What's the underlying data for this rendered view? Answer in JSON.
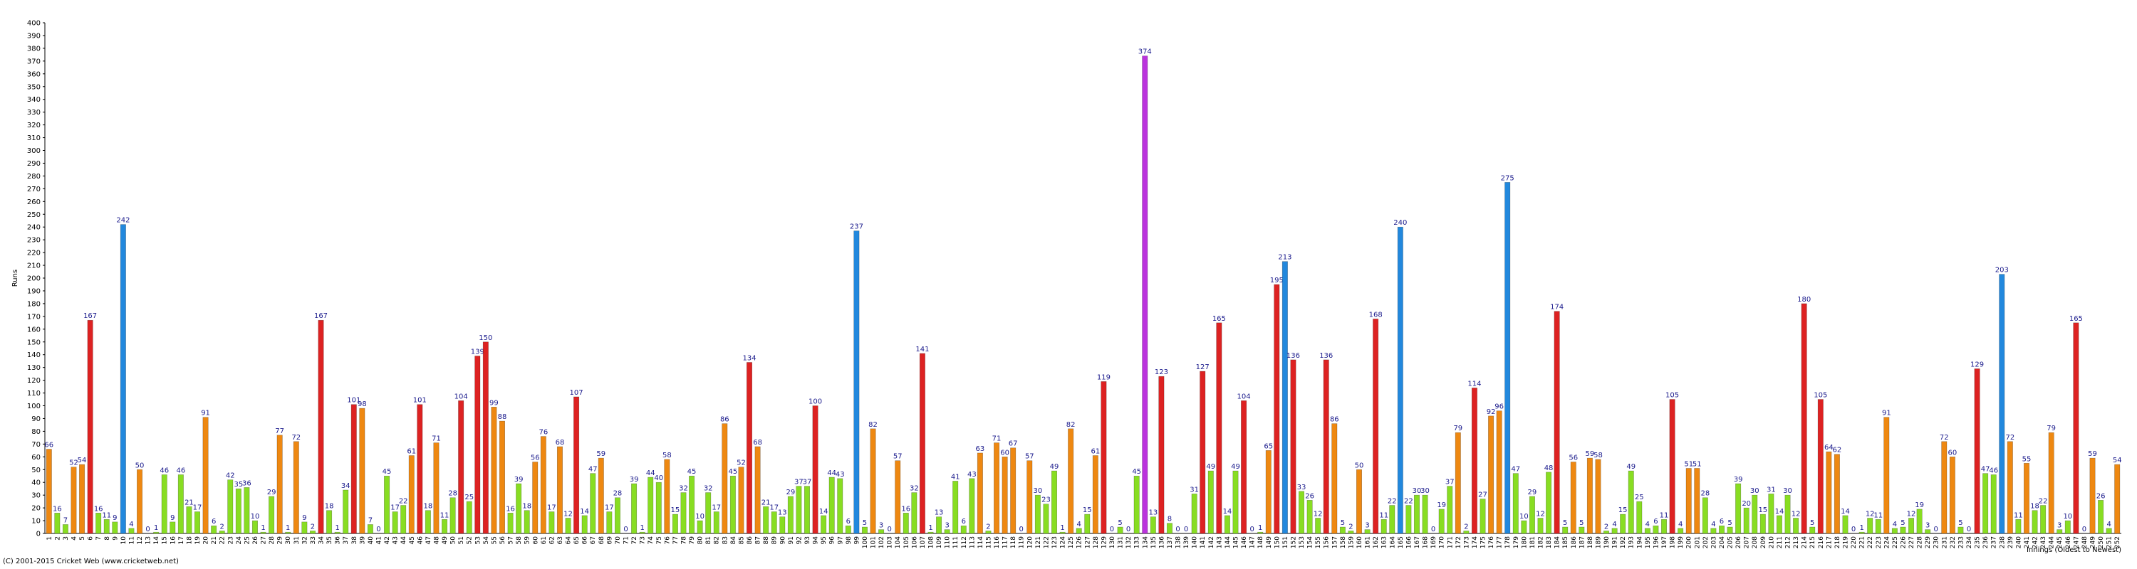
{
  "chart_data": {
    "type": "bar",
    "y_label": "Runs",
    "x_label": "Innings (Oldest to Newest)",
    "copyright": "(C) 2001-2015 Cricket Web (www.cricketweb.net)",
    "categories": [
      "1",
      "2",
      "3",
      "4",
      "5",
      "6",
      "7",
      "8",
      "9",
      "10",
      "11",
      "12",
      "13",
      "14",
      "15",
      "16",
      "17",
      "18",
      "19",
      "20",
      "21",
      "22",
      "23",
      "24",
      "25",
      "26",
      "27",
      "28",
      "29",
      "30",
      "31",
      "32",
      "33",
      "34",
      "35",
      "36",
      "37",
      "38",
      "39",
      "40",
      "41",
      "42",
      "43",
      "44",
      "45",
      "46",
      "47",
      "48",
      "49",
      "50",
      "51",
      "52",
      "53",
      "54",
      "55",
      "56",
      "57",
      "58",
      "59",
      "60",
      "61",
      "62",
      "63",
      "64",
      "65",
      "66",
      "67",
      "68",
      "69",
      "70",
      "71",
      "72",
      "73",
      "74",
      "75",
      "76",
      "77",
      "78",
      "79",
      "80",
      "81",
      "82",
      "83",
      "84",
      "85",
      "86",
      "87",
      "88",
      "89",
      "90",
      "91",
      "92",
      "93",
      "94",
      "95",
      "96",
      "97",
      "98",
      "99",
      "100",
      "101",
      "102",
      "103",
      "104",
      "105",
      "106",
      "107",
      "108",
      "109",
      "110",
      "111",
      "112",
      "113",
      "114",
      "115",
      "116",
      "117",
      "118",
      "119",
      "120",
      "121",
      "122",
      "123",
      "124",
      "125",
      "126",
      "127",
      "128",
      "129",
      "130",
      "131",
      "132",
      "133",
      "134",
      "135",
      "136",
      "137",
      "138",
      "139",
      "140",
      "141",
      "142",
      "143",
      "144",
      "145",
      "146",
      "147",
      "148",
      "149",
      "150",
      "151",
      "152",
      "153",
      "154",
      "155",
      "156",
      "157",
      "158",
      "159",
      "160",
      "161",
      "162",
      "163",
      "164",
      "165",
      "166",
      "167",
      "168",
      "169",
      "170",
      "171",
      "172",
      "173",
      "174",
      "175",
      "176",
      "177",
      "178",
      "179",
      "180",
      "181",
      "182",
      "183",
      "184",
      "185",
      "186",
      "187",
      "188",
      "189",
      "190",
      "191",
      "192",
      "193",
      "194",
      "195",
      "196",
      "197",
      "198",
      "199",
      "200",
      "201",
      "202",
      "203",
      "204",
      "205",
      "206",
      "207",
      "208",
      "209",
      "210",
      "211",
      "212",
      "213",
      "214",
      "215",
      "216",
      "217",
      "218",
      "219",
      "220",
      "221",
      "222",
      "223",
      "224",
      "225",
      "226",
      "227",
      "228",
      "229",
      "230",
      "231",
      "232",
      "233",
      "234",
      "235",
      "236",
      "237",
      "238",
      "239",
      "240",
      "241",
      "242",
      "243",
      "244",
      "245",
      "246",
      "247",
      "248",
      "249",
      "250",
      "251",
      "252"
    ],
    "values": [
      66,
      16,
      7,
      52,
      54,
      167,
      16,
      11,
      9,
      242,
      4,
      50,
      0,
      1,
      46,
      9,
      46,
      21,
      17,
      91,
      6,
      2,
      42,
      35,
      36,
      10,
      1,
      29,
      77,
      1,
      72,
      9,
      2,
      167,
      18,
      1,
      34,
      101,
      98,
      7,
      0,
      45,
      17,
      22,
      61,
      101,
      18,
      71,
      11,
      28,
      104,
      25,
      139,
      150,
      99,
      88,
      16,
      39,
      18,
      56,
      76,
      17,
      68,
      12,
      107,
      14,
      47,
      59,
      17,
      28,
      0,
      39,
      1,
      44,
      40,
      58,
      15,
      32,
      45,
      10,
      32,
      17,
      86,
      45,
      52,
      134,
      68,
      21,
      17,
      13,
      29,
      37,
      37,
      100,
      14,
      44,
      43,
      6,
      237,
      5,
      82,
      3,
      0,
      57,
      16,
      32,
      141,
      1,
      13,
      3,
      41,
      6,
      43,
      63,
      2,
      71,
      60,
      67,
      0,
      57,
      30,
      23,
      49,
      1,
      82,
      4,
      15,
      61,
      119,
      0,
      5,
      0,
      45,
      374,
      13,
      123,
      8,
      0,
      0,
      31,
      127,
      49,
      165,
      14,
      49,
      104,
      0,
      1,
      65,
      195,
      213,
      136,
      33,
      26,
      12,
      136,
      86,
      5,
      2,
      50,
      3,
      168,
      11,
      22,
      240,
      22,
      30,
      30,
      0,
      19,
      37,
      79,
      2,
      114,
      27,
      92,
      96,
      275,
      47,
      10,
      29,
      12,
      48,
      174,
      5,
      56,
      5,
      59,
      58,
      2,
      4,
      15,
      49,
      25,
      4,
      6,
      11,
      105,
      4,
      51,
      51,
      28,
      4,
      6,
      5,
      39,
      20,
      30,
      15,
      31,
      14,
      30,
      12,
      180,
      5,
      105,
      64,
      62,
      14,
      0,
      1,
      12,
      11,
      91,
      4,
      5,
      12,
      19,
      3,
      0,
      72,
      60,
      5,
      0,
      129,
      47,
      46,
      203,
      72,
      11,
      55,
      18,
      22,
      79,
      3,
      10,
      165,
      0,
      59,
      26,
      4,
      54
    ],
    "colors": [
      "#e81",
      "#8d2",
      "#8d2",
      "#e81",
      "#e81",
      "#d22",
      "#8d2",
      "#8d2",
      "#8d2",
      "#28d",
      "#8d2",
      "#e81",
      "#8d2",
      "#8d2",
      "#8d2",
      "#8d2",
      "#8d2",
      "#8d2",
      "#8d2",
      "#e81",
      "#8d2",
      "#8d2",
      "#8d2",
      "#8d2",
      "#8d2",
      "#8d2",
      "#8d2",
      "#8d2",
      "#e81",
      "#8d2",
      "#e81",
      "#8d2",
      "#8d2",
      "#d22",
      "#8d2",
      "#8d2",
      "#8d2",
      "#d22",
      "#e81",
      "#8d2",
      "#8d2",
      "#8d2",
      "#8d2",
      "#8d2",
      "#e81",
      "#d22",
      "#8d2",
      "#e81",
      "#8d2",
      "#8d2",
      "#d22",
      "#8d2",
      "#d22",
      "#d22",
      "#e81",
      "#e81",
      "#8d2",
      "#8d2",
      "#8d2",
      "#e81",
      "#e81",
      "#8d2",
      "#e81",
      "#8d2",
      "#d22",
      "#8d2",
      "#8d2",
      "#e81",
      "#8d2",
      "#8d2",
      "#8d2",
      "#8d2",
      "#8d2",
      "#8d2",
      "#8d2",
      "#e81",
      "#8d2",
      "#8d2",
      "#8d2",
      "#8d2",
      "#8d2",
      "#8d2",
      "#e81",
      "#8d2",
      "#e81",
      "#d22",
      "#e81",
      "#8d2",
      "#8d2",
      "#8d2",
      "#8d2",
      "#8d2",
      "#8d2",
      "#d22",
      "#8d2",
      "#8d2",
      "#8d2",
      "#8d2",
      "#28d",
      "#8d2",
      "#e81",
      "#8d2",
      "#8d2",
      "#e81",
      "#8d2",
      "#8d2",
      "#d22",
      "#8d2",
      "#8d2",
      "#8d2",
      "#8d2",
      "#8d2",
      "#8d2",
      "#e81",
      "#8d2",
      "#e81",
      "#e81",
      "#e81",
      "#8d2",
      "#e81",
      "#8d2",
      "#8d2",
      "#8d2",
      "#8d2",
      "#e81",
      "#8d2",
      "#8d2",
      "#e81",
      "#d22",
      "#8d2",
      "#8d2",
      "#8d2",
      "#8d2",
      "#b3d",
      "#8d2",
      "#d22",
      "#8d2",
      "#8d2",
      "#8d2",
      "#8d2",
      "#d22",
      "#8d2",
      "#d22",
      "#8d2",
      "#8d2",
      "#d22",
      "#8d2",
      "#8d2",
      "#e81",
      "#d22",
      "#28d",
      "#d22",
      "#8d2",
      "#8d2",
      "#8d2",
      "#d22",
      "#e81",
      "#8d2",
      "#8d2",
      "#e81",
      "#8d2",
      "#d22",
      "#8d2",
      "#8d2",
      "#28d",
      "#8d2",
      "#8d2",
      "#8d2",
      "#8d2",
      "#8d2",
      "#8d2",
      "#e81",
      "#8d2",
      "#d22",
      "#8d2",
      "#e81",
      "#e81",
      "#28d",
      "#8d2",
      "#8d2",
      "#8d2",
      "#8d2",
      "#8d2",
      "#d22",
      "#8d2",
      "#e81",
      "#8d2",
      "#e81",
      "#e81",
      "#8d2",
      "#8d2",
      "#8d2",
      "#8d2",
      "#8d2",
      "#8d2",
      "#8d2",
      "#8d2",
      "#d22",
      "#8d2",
      "#e81",
      "#e81",
      "#8d2",
      "#8d2",
      "#8d2",
      "#8d2",
      "#8d2",
      "#8d2",
      "#8d2",
      "#8d2",
      "#8d2",
      "#8d2",
      "#8d2",
      "#8d2",
      "#d22",
      "#8d2",
      "#d22",
      "#e81",
      "#e81",
      "#8d2",
      "#8d2",
      "#8d2",
      "#8d2",
      "#8d2",
      "#e81",
      "#8d2",
      "#8d2",
      "#8d2",
      "#8d2",
      "#8d2",
      "#8d2",
      "#e81",
      "#e81",
      "#8d2",
      "#8d2",
      "#d22",
      "#8d2",
      "#8d2",
      "#28d",
      "#e81",
      "#8d2",
      "#e81",
      "#8d2",
      "#8d2",
      "#e81",
      "#8d2",
      "#8d2",
      "#d22",
      "#8d2",
      "#e81",
      "#8d2",
      "#8d2",
      "#e81"
    ],
    "ylim": [
      0,
      400
    ],
    "yticks": [
      0,
      10,
      20,
      30,
      40,
      50,
      60,
      70,
      80,
      90,
      100,
      110,
      120,
      130,
      140,
      150,
      160,
      170,
      180,
      190,
      200,
      210,
      220,
      230,
      240,
      250,
      260,
      270,
      280,
      290,
      300,
      310,
      320,
      330,
      340,
      350,
      360,
      370,
      380,
      390,
      400
    ],
    "grid": false
  }
}
